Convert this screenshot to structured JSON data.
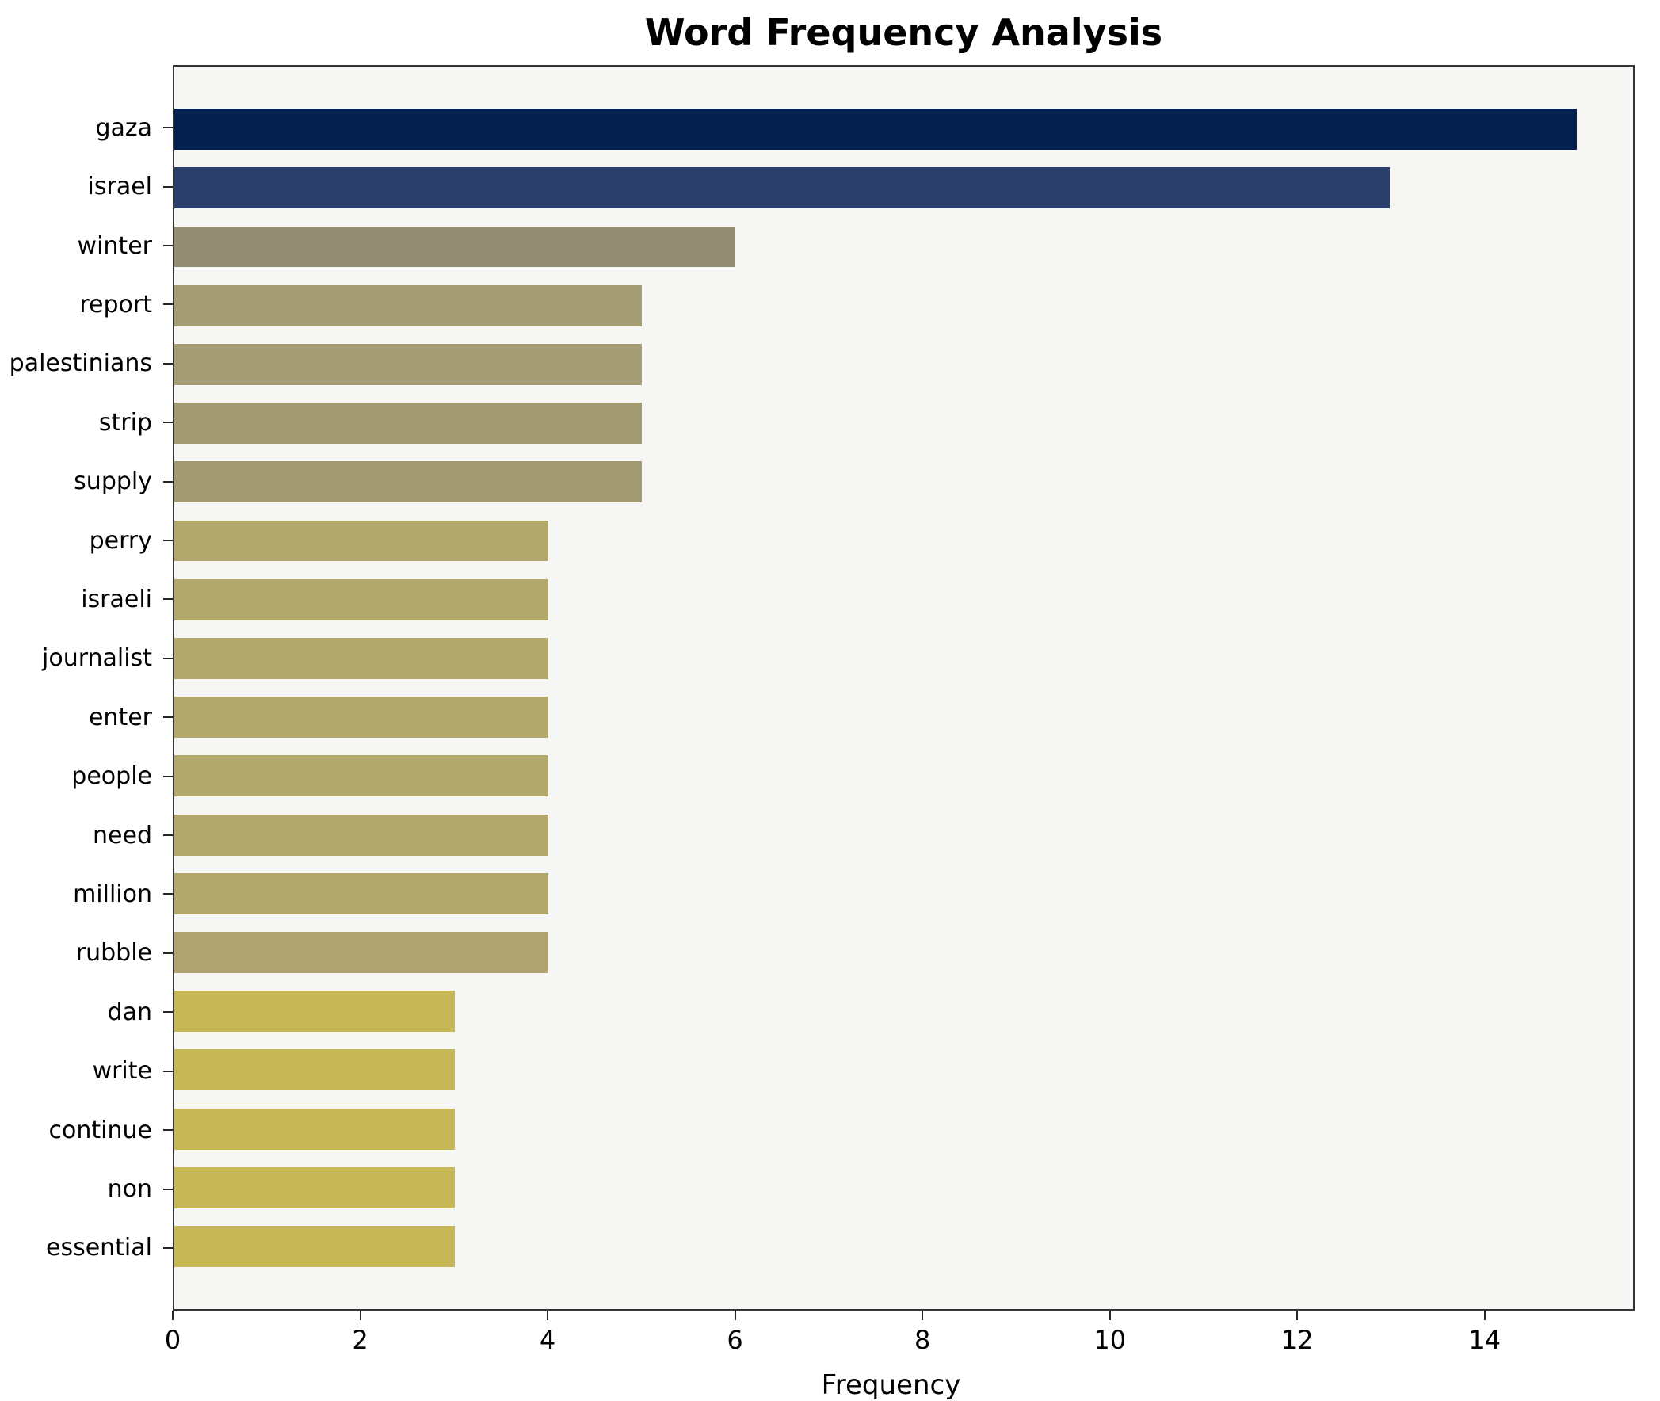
{
  "chart_data": {
    "type": "bar",
    "orientation": "horizontal",
    "title": "Word Frequency Analysis",
    "xlabel": "Frequency",
    "ylabel": "",
    "categories": [
      "gaza",
      "israel",
      "winter",
      "report",
      "palestinians",
      "strip",
      "supply",
      "perry",
      "israeli",
      "journalist",
      "enter",
      "people",
      "need",
      "million",
      "rubble",
      "dan",
      "write",
      "continue",
      "non",
      "essential"
    ],
    "values": [
      15,
      13,
      6,
      5,
      5,
      5,
      5,
      4,
      4,
      4,
      4,
      4,
      4,
      4,
      4,
      3,
      3,
      3,
      3,
      3
    ],
    "bar_colors": [
      "#04204e",
      "#2b3e6c",
      "#938d76",
      "#a59d73",
      "#a59d73",
      "#a29a72",
      "#a29a72",
      "#b2a76c",
      "#b2a76c",
      "#b2a76c",
      "#b2a76c",
      "#b2a76c",
      "#b2a76c",
      "#b2a76c",
      "#afa470",
      "#c6b757",
      "#c6b757",
      "#c6b757",
      "#c6b757",
      "#c6b757"
    ],
    "xlim": [
      0,
      15.6
    ],
    "xticks": [
      0,
      2,
      4,
      6,
      8,
      10,
      12,
      14
    ],
    "grid": false,
    "legend": "none",
    "plot_background": "#f6f6f4"
  }
}
